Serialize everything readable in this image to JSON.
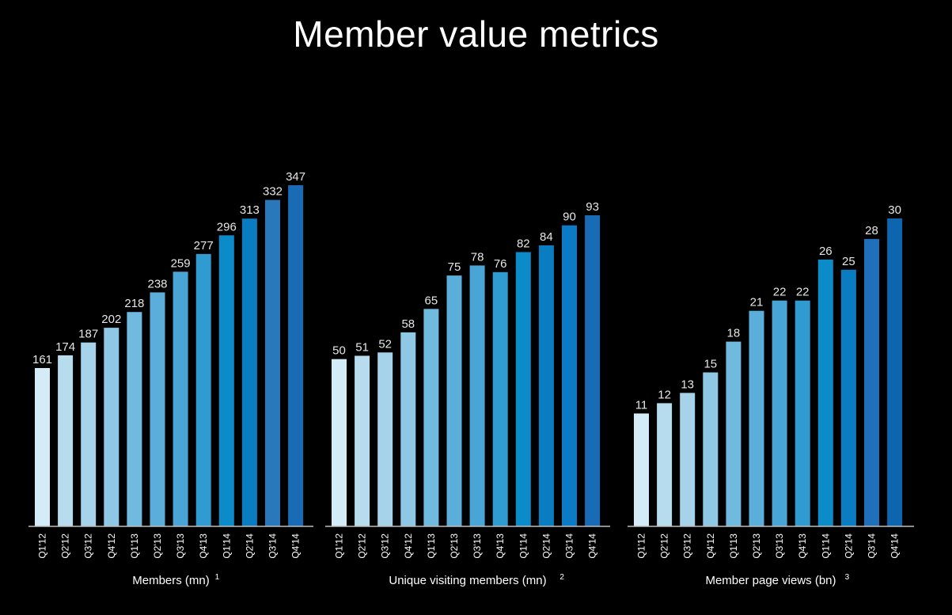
{
  "title": "Member value metrics",
  "chart_data": [
    {
      "type": "bar",
      "xlabel": "Members (mn)",
      "footnote": "1",
      "categories": [
        "Q1'12",
        "Q2'12",
        "Q3'12",
        "Q4'12",
        "Q1'13",
        "Q2'13",
        "Q3'13",
        "Q4'13",
        "Q1'14",
        "Q2'14",
        "Q3'14",
        "Q4'14"
      ],
      "values": [
        161,
        174,
        187,
        202,
        218,
        238,
        259,
        277,
        296,
        313,
        332,
        347
      ],
      "ylim": [
        0,
        347
      ],
      "colors": [
        "#d4ecf8",
        "#b7dced",
        "#a6d3ea",
        "#8ec8e4",
        "#70b9df",
        "#5aaed9",
        "#48a5d5",
        "#2f9bd1",
        "#0c8bc9",
        "#0a7dc2",
        "#2a78bc",
        "#1a6bb5"
      ]
    },
    {
      "type": "bar",
      "xlabel": "Unique visiting members (mn)",
      "footnote": "2",
      "categories": [
        "Q1'12",
        "Q2'12",
        "Q3'12",
        "Q4'12",
        "Q1'13",
        "Q2'13",
        "Q3'13",
        "Q4'13",
        "Q1'14",
        "Q2'14",
        "Q3'14",
        "Q4'14"
      ],
      "values": [
        50,
        51,
        52,
        58,
        65,
        75,
        78,
        76,
        82,
        84,
        90,
        93
      ],
      "ylim": [
        0,
        93
      ],
      "colors": [
        "#d4ecf8",
        "#b7dced",
        "#a6d3ea",
        "#8ec8e4",
        "#70b9df",
        "#5aaed9",
        "#48a5d5",
        "#2f9bd1",
        "#0c8bc9",
        "#0a7dc2",
        "#0a7bc4",
        "#1a6bb5"
      ]
    },
    {
      "type": "bar",
      "xlabel": "Member page views (bn)",
      "footnote": "3",
      "categories": [
        "Q1'12",
        "Q2'12",
        "Q3'12",
        "Q4'12",
        "Q1'13",
        "Q2'13",
        "Q3'13",
        "Q4'13",
        "Q1'14",
        "Q2'14",
        "Q3'14",
        "Q4'14"
      ],
      "values": [
        11,
        12,
        13,
        15,
        18,
        21,
        22,
        22,
        26,
        25,
        28,
        30
      ],
      "ylim": [
        0,
        30
      ],
      "colors": [
        "#d4ecf8",
        "#b7dced",
        "#a6d3ea",
        "#8ec8e4",
        "#70b9df",
        "#5aaed9",
        "#48a5d5",
        "#2f9bd1",
        "#0c8bc9",
        "#0a7dc2",
        "#1f6fba",
        "#0d64af"
      ]
    }
  ]
}
